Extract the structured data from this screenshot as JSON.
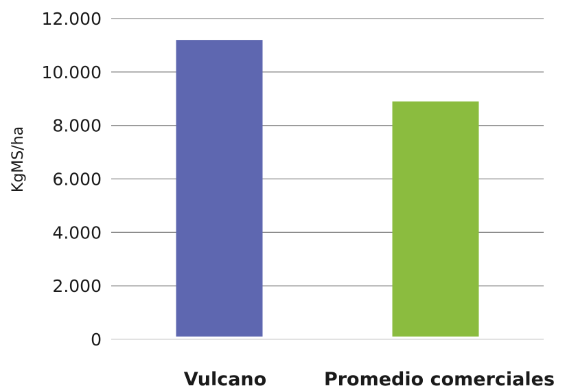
{
  "chart_data": {
    "type": "bar",
    "categories": [
      "Vulcano",
      "Promedio comerciales"
    ],
    "values": [
      11200,
      8900
    ],
    "ylabel": "KgMS/ha",
    "xlabel": "",
    "ylim": [
      0,
      12000
    ],
    "yticks": [
      0,
      2000,
      4000,
      6000,
      8000,
      10000,
      12000
    ],
    "ytick_labels": [
      "0",
      "2.000",
      "4.000",
      "6.000",
      "8.000",
      "10.000",
      "12.000"
    ],
    "colors": [
      "#5e67b0",
      "#8bbc3f"
    ],
    "grid": true,
    "legend": "none"
  }
}
